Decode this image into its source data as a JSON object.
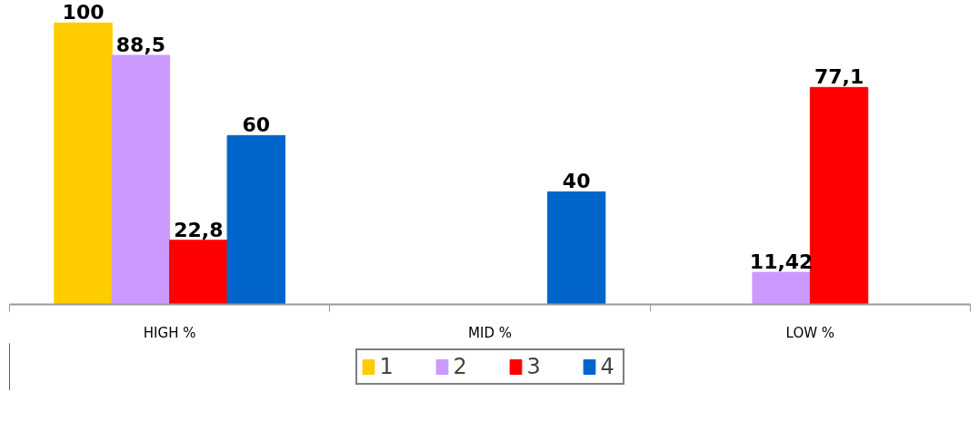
{
  "chart_data": {
    "type": "bar",
    "categories": [
      "HIGH %",
      "MID %",
      "LOW %"
    ],
    "series": [
      {
        "name": "1",
        "color": "#ffcc00",
        "values": [
          100,
          null,
          null
        ],
        "value_labels": [
          "100",
          null,
          null
        ]
      },
      {
        "name": "2",
        "color": "#cc99ff",
        "values": [
          88.5,
          null,
          11.42
        ],
        "value_labels": [
          "88,5",
          null,
          "11,42"
        ]
      },
      {
        "name": "3",
        "color": "#ff0000",
        "values": [
          22.8,
          null,
          77.1
        ],
        "value_labels": [
          "22,8",
          null,
          "77,1"
        ]
      },
      {
        "name": "4",
        "color": "#0066cc",
        "values": [
          60,
          40,
          null
        ],
        "value_labels": [
          "60",
          "40",
          null
        ]
      }
    ],
    "tick_labels": "x",
    "grid": false,
    "legend": "bottom"
  }
}
